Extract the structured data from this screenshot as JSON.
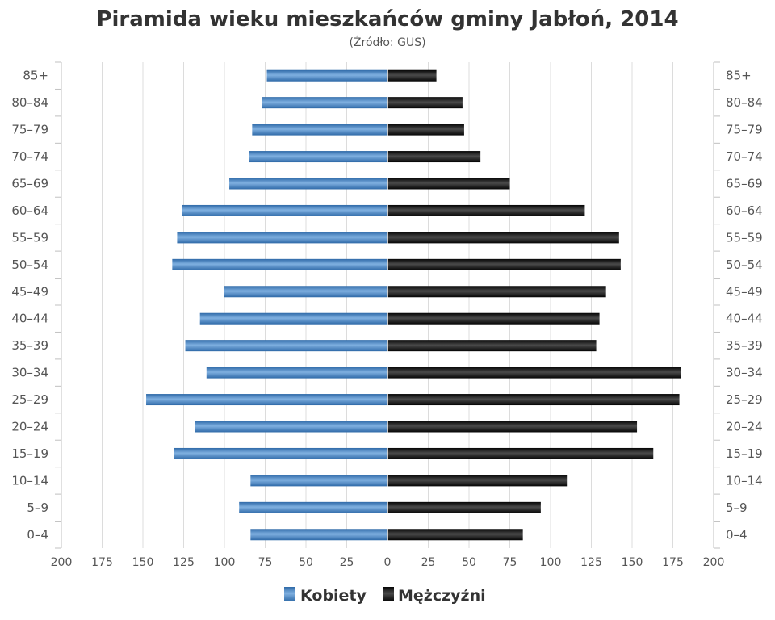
{
  "chart_data": {
    "type": "bar",
    "orientation": "horizontal-pyramid",
    "title": "Piramida wieku mieszkańców gminy Jabłoń, 2014",
    "subtitle": "(Źródło: GUS)",
    "categories": [
      "85+",
      "80–84",
      "75–79",
      "70–74",
      "65–69",
      "60–64",
      "55–59",
      "50–54",
      "45–49",
      "40–44",
      "35–39",
      "30–34",
      "25–29",
      "20–24",
      "15–19",
      "10–14",
      "5–9",
      "0–4"
    ],
    "x_ticks": [
      "200",
      "175",
      "150",
      "125",
      "100",
      "75",
      "50",
      "25",
      "0",
      "25",
      "50",
      "75",
      "100",
      "125",
      "150",
      "175",
      "200"
    ],
    "xlim": [
      -200,
      200
    ],
    "grid": true,
    "legend_position": "bottom",
    "series": [
      {
        "name": "Kobiety",
        "color": "#4a86c5",
        "values": [
          74,
          77,
          83,
          85,
          97,
          126,
          129,
          132,
          100,
          115,
          124,
          111,
          148,
          118,
          131,
          84,
          91,
          84
        ]
      },
      {
        "name": "Mężczyźni",
        "color": "#1a1a1a",
        "values": [
          30,
          46,
          47,
          57,
          75,
          121,
          142,
          143,
          134,
          130,
          128,
          180,
          179,
          153,
          163,
          110,
          94,
          83
        ]
      }
    ]
  }
}
